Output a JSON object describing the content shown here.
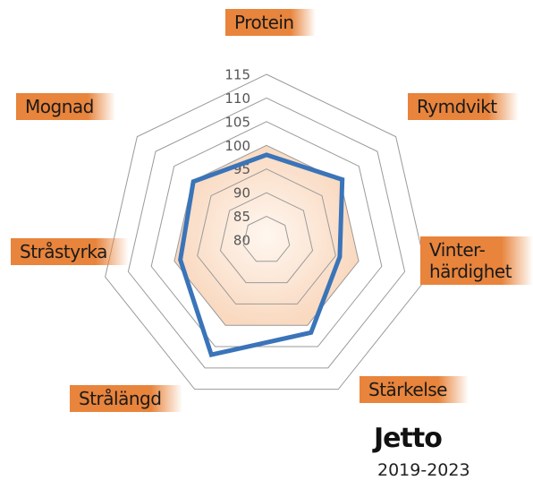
{
  "chart_data": {
    "type": "radar",
    "title": "Jetto",
    "subtitle": "2019-2023",
    "categories": [
      "Protein",
      "Rymdvikt",
      "Vinter-\nhärdighet",
      "Stärkelse",
      "Strålängd",
      "Stråstyrka",
      "Mognad"
    ],
    "series": [
      {
        "name": "Jetto",
        "color": "#3a74b9",
        "values": [
          98.0,
          100.5,
          95.9,
          101.7,
          106.9,
          98.7,
          99.8
        ]
      }
    ],
    "reference": 100,
    "reference_color": "#f9d9c0",
    "ylim": [
      80,
      115
    ],
    "yticks": [
      80,
      85,
      90,
      95,
      100,
      105,
      110,
      115
    ],
    "grid": true
  }
}
